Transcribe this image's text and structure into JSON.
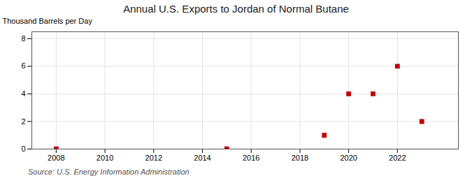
{
  "chart_data": {
    "type": "scatter",
    "title": "Annual U.S. Exports to Jordan of Normal Butane",
    "ylabel": "Thousand Barrels per Day",
    "caption": "Source: U.S. Energy Information Administration",
    "x": [
      2008,
      2015,
      2019,
      2020,
      2021,
      2022,
      2023
    ],
    "values": [
      0.02,
      0.02,
      1.0,
      4.0,
      4.0,
      6.0,
      2.0
    ],
    "color": "#c00000",
    "marker": "square",
    "xlim": [
      2007,
      2024.5
    ],
    "ylim": [
      0,
      8.5
    ],
    "xticks": [
      2008,
      2010,
      2012,
      2014,
      2016,
      2018,
      2020,
      2022
    ],
    "yticks": [
      0,
      2,
      4,
      6,
      8
    ],
    "grid": true
  }
}
